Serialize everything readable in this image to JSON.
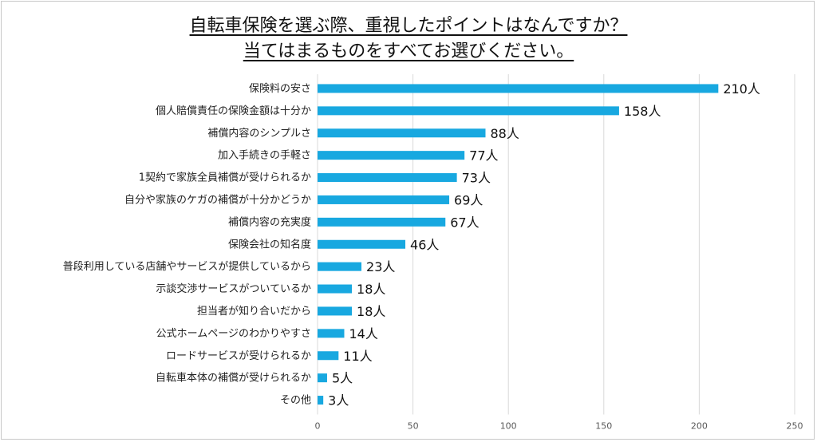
{
  "chart_data": {
    "type": "bar",
    "orientation": "horizontal",
    "title": "自転車保険を選ぶ際、重視したポイントはなんですか？",
    "subtitle": "当てはまるものをすべてお選びください。",
    "categories": [
      "保険料の安さ",
      "個人賠償責任の保険金額は十分か",
      "補償内容のシンプルさ",
      "加入手続きの手軽さ",
      "1契約で家族全員補償が受けられるか",
      "自分や家族のケガの補償が十分かどうか",
      "補償内容の充実度",
      "保険会社の知名度",
      "普段利用している店舗やサービスが提供しているから",
      "示談交渉サービスがついているか",
      "担当者が知り合いだから",
      "公式ホームページのわかりやすさ",
      "ロードサービスが受けられるか",
      "自転車本体の補償が受けられるか",
      "その他"
    ],
    "values": [
      210,
      158,
      88,
      77,
      73,
      69,
      67,
      46,
      23,
      18,
      18,
      14,
      11,
      5,
      3
    ],
    "value_labels": [
      "210人",
      "158人",
      "88人",
      "77人",
      "73人",
      "69人",
      "67人",
      "46人",
      "23人",
      "18人",
      "18人",
      "14人",
      "11人",
      "5人",
      "3人"
    ],
    "xlim": [
      0,
      250
    ],
    "xticks": [
      "0",
      "50",
      "100",
      "150",
      "200",
      "250"
    ],
    "xlabel": "",
    "ylabel": "",
    "grid": true,
    "bar_color": "#18a8e0",
    "grid_color": "#d9d9d9"
  }
}
